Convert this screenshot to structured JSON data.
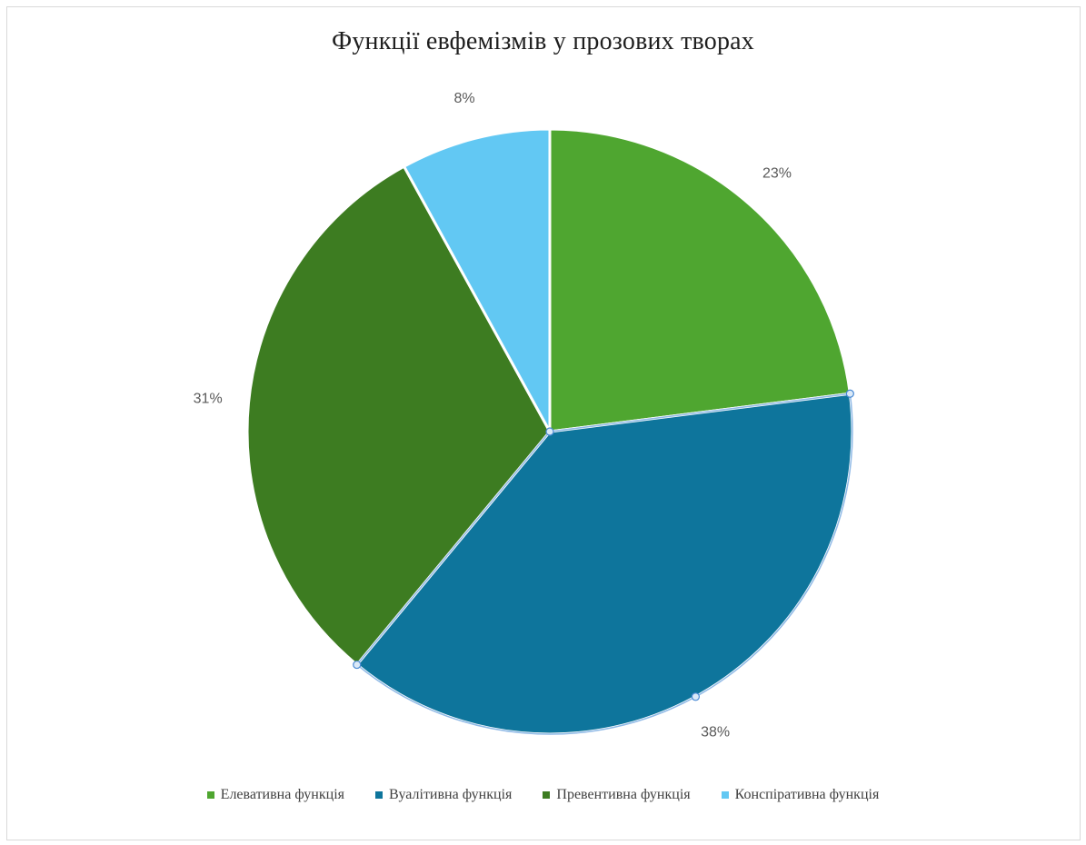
{
  "chart_data": {
    "type": "pie",
    "title": "Функції евфемізмів у прозових творах",
    "categories": [
      "Елевативна функція",
      "Вуалітивна функція",
      "Превентивна функція",
      "Конспіративна функція"
    ],
    "values": [
      23,
      38,
      31,
      8
    ],
    "labels": [
      "23%",
      "38%",
      "31%",
      "8%"
    ],
    "colors": [
      "#4fa630",
      "#0e759c",
      "#3d7c21",
      "#62c8f3"
    ],
    "start_angle_deg": 0,
    "direction": "clockwise",
    "selected_slice": "Вуалітивна функція",
    "legend_position": "bottom"
  }
}
